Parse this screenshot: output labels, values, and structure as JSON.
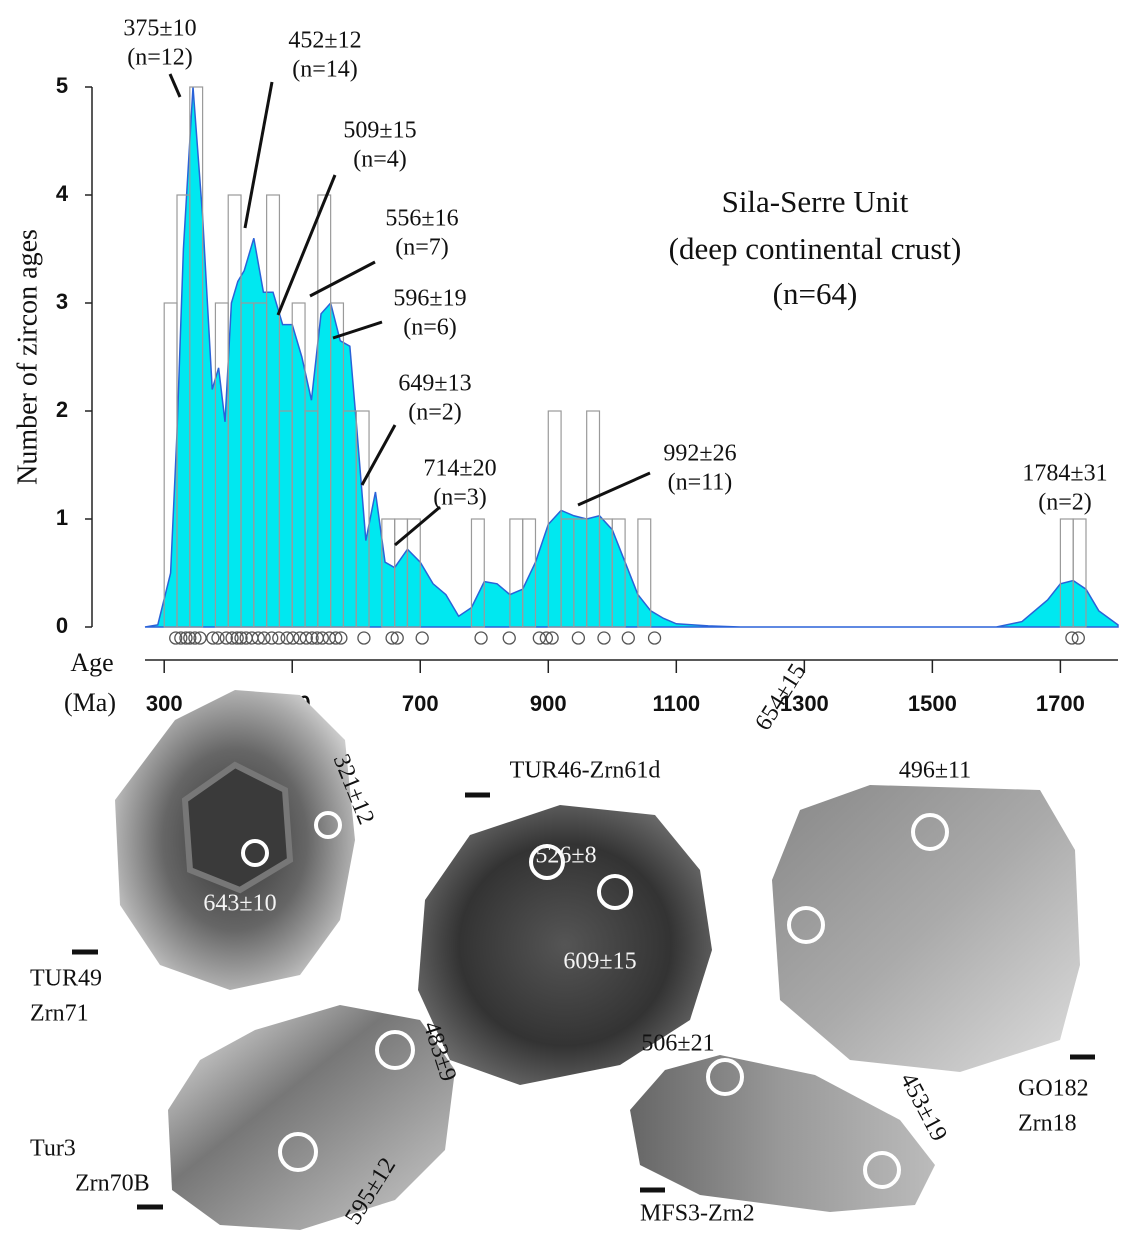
{
  "chart_data": {
    "type": "histogram",
    "title": [
      "Sila-Serre Unit",
      "(deep continental crust)",
      "(n=64)"
    ],
    "y_label": "Number of zircon ages",
    "x_label": [
      "Age",
      "(Ma)"
    ],
    "xlim": [
      270,
      1790
    ],
    "xticks": [
      300,
      500,
      700,
      900,
      1100,
      1300,
      1500,
      1700
    ],
    "ylim": [
      0,
      5
    ],
    "yticks": [
      0,
      1,
      2,
      3,
      4,
      5
    ],
    "bins": [
      300,
      320,
      340,
      360,
      380,
      400,
      420,
      440,
      460,
      480,
      500,
      520,
      540,
      560,
      580,
      600,
      620,
      640,
      660,
      680,
      700,
      720,
      740,
      760,
      780,
      800,
      820,
      840,
      860,
      880,
      900,
      920,
      940,
      960,
      980,
      1000,
      1020,
      1040,
      1060,
      1080,
      1100,
      1120,
      1140,
      1160,
      1180,
      1200,
      1220,
      1240,
      1260,
      1280,
      1300,
      1320,
      1340,
      1360,
      1380,
      1400,
      1420,
      1440,
      1460,
      1480,
      1500,
      1520,
      1540,
      1560,
      1580,
      1600,
      1620,
      1640,
      1660,
      1680,
      1700,
      1720,
      1740
    ],
    "counts": [
      3,
      4,
      5,
      0,
      3,
      4,
      3,
      3,
      4,
      2,
      3,
      2,
      4,
      3,
      2,
      2,
      0,
      1,
      1,
      1,
      0,
      0,
      0,
      0,
      1,
      0,
      0,
      1,
      1,
      0,
      2,
      1,
      1,
      2,
      1,
      1,
      0,
      1,
      0,
      0,
      0,
      0,
      0,
      0,
      0,
      0,
      0,
      0,
      0,
      0,
      0,
      0,
      0,
      0,
      0,
      0,
      0,
      0,
      0,
      0,
      0,
      0,
      0,
      0,
      0,
      0,
      0,
      0,
      0,
      0,
      1,
      1
    ],
    "bar_color": "#9a9a9a",
    "curve": {
      "x": [
        270,
        290,
        310,
        320,
        330,
        345,
        360,
        375,
        385,
        395,
        405,
        415,
        425,
        440,
        455,
        470,
        485,
        500,
        515,
        530,
        545,
        560,
        575,
        590,
        600,
        615,
        630,
        645,
        660,
        680,
        700,
        720,
        740,
        760,
        780,
        800,
        820,
        840,
        860,
        880,
        900,
        920,
        940,
        960,
        980,
        1000,
        1020,
        1040,
        1060,
        1080,
        1100,
        1150,
        1200,
        1600,
        1640,
        1680,
        1700,
        1720,
        1740,
        1760,
        1790
      ],
      "values": [
        0,
        0.02,
        0.5,
        1.8,
        3.5,
        5.0,
        3.8,
        2.2,
        2.4,
        1.9,
        3.0,
        3.2,
        3.3,
        3.6,
        3.1,
        3.1,
        2.8,
        2.8,
        2.5,
        2.1,
        2.9,
        3.0,
        2.65,
        2.6,
        1.9,
        0.8,
        1.25,
        0.6,
        0.55,
        0.72,
        0.6,
        0.4,
        0.3,
        0.1,
        0.18,
        0.42,
        0.4,
        0.3,
        0.35,
        0.6,
        0.95,
        1.08,
        1.03,
        1.0,
        1.03,
        0.9,
        0.6,
        0.3,
        0.15,
        0.08,
        0.03,
        0.01,
        0,
        0,
        0.05,
        0.25,
        0.4,
        0.43,
        0.35,
        0.15,
        0.02
      ],
      "color": "#00e8f0",
      "line_color": "#2a62d8"
    },
    "ages": [
      318,
      326,
      334,
      340,
      348,
      356,
      376,
      384,
      397,
      406,
      414,
      420,
      428,
      437,
      447,
      456,
      468,
      479,
      492,
      501,
      512,
      522,
      531,
      539,
      547,
      558,
      568,
      576,
      612,
      656,
      664,
      703,
      795,
      839,
      886,
      897,
      906,
      947,
      987,
      1025,
      1066,
      1718,
      1728
    ],
    "annotations": [
      [
        "375±10",
        "(n=12)"
      ],
      [
        "452±12",
        "(n=14)"
      ],
      [
        "509±15",
        "(n=4)"
      ],
      [
        "556±16",
        "(n=7)"
      ],
      [
        "596±19",
        "(n=6)"
      ],
      [
        "649±13",
        "(n=2)"
      ],
      [
        "714±20",
        "(n=3)"
      ],
      [
        "992±26",
        "(n=11)"
      ],
      [
        "1784±31",
        "(n=2)"
      ]
    ]
  },
  "zircons": [
    {
      "sample": [
        "TUR49",
        "Zrn71"
      ],
      "ages": [
        "321±12",
        "643±10"
      ]
    },
    {
      "sample": [
        "TUR46-Zrn61d"
      ],
      "ages": [
        "526±8",
        "609±15"
      ]
    },
    {
      "sample": [
        "GO182",
        "Zrn18"
      ],
      "ages": [
        "496±11",
        "654±15"
      ]
    },
    {
      "sample": [
        "Tur3",
        "Zrn70B"
      ],
      "ages": [
        "483±9",
        "595±12"
      ]
    },
    {
      "sample": [
        "MFS3-Zrn2"
      ],
      "ages": [
        "506±21",
        "453±19"
      ]
    }
  ]
}
